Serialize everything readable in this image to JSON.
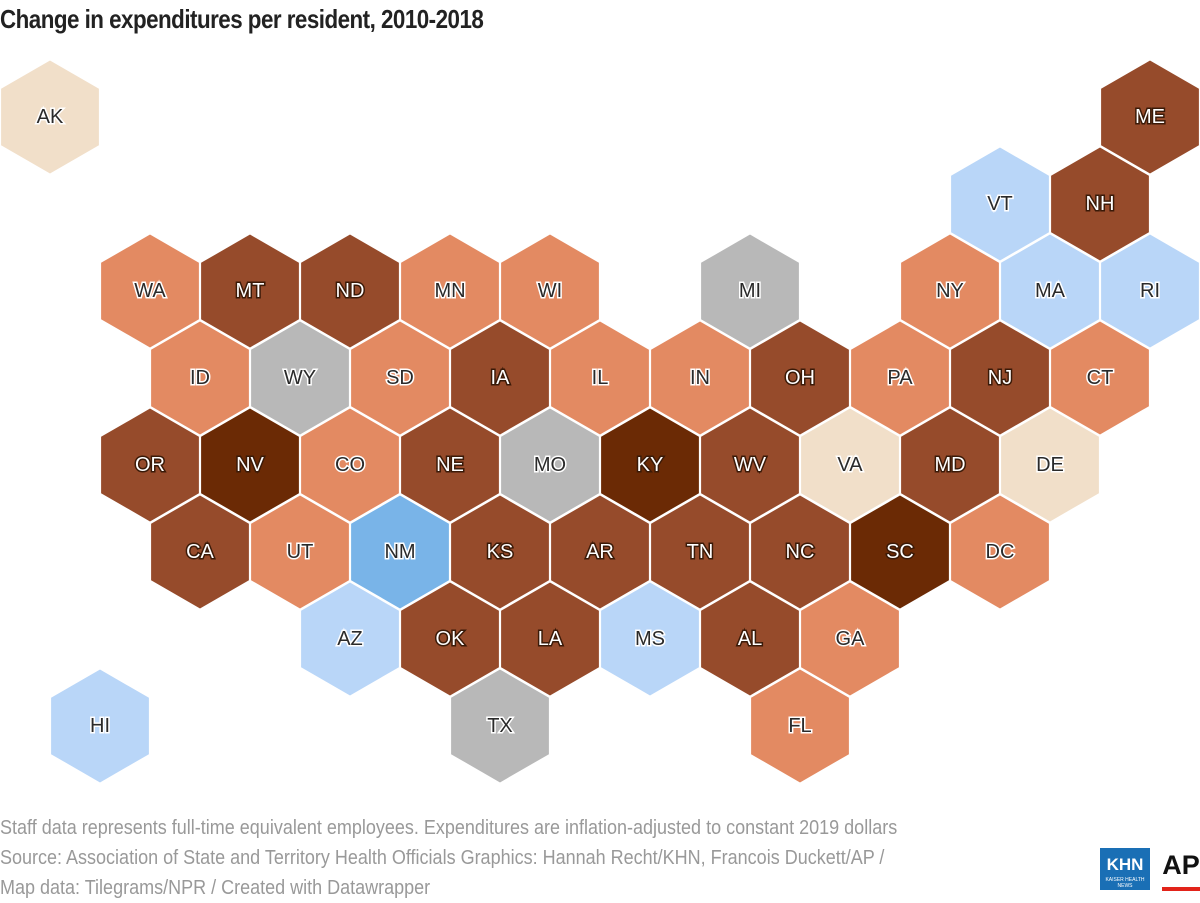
{
  "title": "Change in expenditures per resident, 2010-2018",
  "footer": {
    "note": "Staff data represents full-time equivalent employees. Expenditures are inflation-adjusted to constant 2019 dollars",
    "source": "Source: Association of State and Territory Health Officials Graphics: Hannah Recht/KHN, Francois Duckett/AP /",
    "map_data": "Map data: Tilegrams/NPR / Created with Datawrapper"
  },
  "logos": {
    "khn": "KHN",
    "khn_sub": "KAISER HEALTH NEWS",
    "ap": "AP"
  },
  "colors": {
    "c1": "#6b2a05",
    "c2": "#964b2b",
    "c3": "#e38a62",
    "c4": "#f1dfc9",
    "c5": "#b8b8b8",
    "c6": "#b9d6f8",
    "c7": "#79b4e8"
  },
  "chart_data": {
    "type": "hex-tile-map",
    "title": "Change in expenditures per resident, 2010-2018",
    "states": [
      {
        "abbr": "AK",
        "row": 0,
        "col": 0,
        "category": "c4"
      },
      {
        "abbr": "ME",
        "row": 0,
        "col": 11,
        "category": "c2"
      },
      {
        "abbr": "VT",
        "row": 1,
        "col": 9,
        "category": "c6"
      },
      {
        "abbr": "NH",
        "row": 1,
        "col": 10,
        "category": "c2"
      },
      {
        "abbr": "WA",
        "row": 2,
        "col": 1,
        "category": "c3"
      },
      {
        "abbr": "MT",
        "row": 2,
        "col": 2,
        "category": "c2"
      },
      {
        "abbr": "ND",
        "row": 2,
        "col": 3,
        "category": "c2"
      },
      {
        "abbr": "MN",
        "row": 2,
        "col": 4,
        "category": "c3"
      },
      {
        "abbr": "WI",
        "row": 2,
        "col": 5,
        "category": "c3"
      },
      {
        "abbr": "MI",
        "row": 2,
        "col": 7,
        "category": "c5"
      },
      {
        "abbr": "NY",
        "row": 2,
        "col": 9,
        "category": "c3"
      },
      {
        "abbr": "MA",
        "row": 2,
        "col": 10,
        "category": "c6"
      },
      {
        "abbr": "RI",
        "row": 2,
        "col": 11,
        "category": "c6"
      },
      {
        "abbr": "ID",
        "row": 3,
        "col": 1,
        "category": "c3"
      },
      {
        "abbr": "WY",
        "row": 3,
        "col": 2,
        "category": "c5"
      },
      {
        "abbr": "SD",
        "row": 3,
        "col": 3,
        "category": "c3"
      },
      {
        "abbr": "IA",
        "row": 3,
        "col": 4,
        "category": "c2"
      },
      {
        "abbr": "IL",
        "row": 3,
        "col": 5,
        "category": "c3"
      },
      {
        "abbr": "IN",
        "row": 3,
        "col": 6,
        "category": "c3"
      },
      {
        "abbr": "OH",
        "row": 3,
        "col": 7,
        "category": "c2"
      },
      {
        "abbr": "PA",
        "row": 3,
        "col": 8,
        "category": "c3"
      },
      {
        "abbr": "NJ",
        "row": 3,
        "col": 9,
        "category": "c2"
      },
      {
        "abbr": "CT",
        "row": 3,
        "col": 10,
        "category": "c3"
      },
      {
        "abbr": "OR",
        "row": 4,
        "col": 1,
        "category": "c2"
      },
      {
        "abbr": "NV",
        "row": 4,
        "col": 2,
        "category": "c1"
      },
      {
        "abbr": "CO",
        "row": 4,
        "col": 3,
        "category": "c3"
      },
      {
        "abbr": "NE",
        "row": 4,
        "col": 4,
        "category": "c2"
      },
      {
        "abbr": "MO",
        "row": 4,
        "col": 5,
        "category": "c5"
      },
      {
        "abbr": "KY",
        "row": 4,
        "col": 6,
        "category": "c1"
      },
      {
        "abbr": "WV",
        "row": 4,
        "col": 7,
        "category": "c2"
      },
      {
        "abbr": "VA",
        "row": 4,
        "col": 8,
        "category": "c4"
      },
      {
        "abbr": "MD",
        "row": 4,
        "col": 9,
        "category": "c2"
      },
      {
        "abbr": "DE",
        "row": 4,
        "col": 10,
        "category": "c4"
      },
      {
        "abbr": "CA",
        "row": 5,
        "col": 1,
        "category": "c2"
      },
      {
        "abbr": "UT",
        "row": 5,
        "col": 2,
        "category": "c3"
      },
      {
        "abbr": "NM",
        "row": 5,
        "col": 3,
        "category": "c7"
      },
      {
        "abbr": "KS",
        "row": 5,
        "col": 4,
        "category": "c2"
      },
      {
        "abbr": "AR",
        "row": 5,
        "col": 5,
        "category": "c2"
      },
      {
        "abbr": "TN",
        "row": 5,
        "col": 6,
        "category": "c2"
      },
      {
        "abbr": "NC",
        "row": 5,
        "col": 7,
        "category": "c2"
      },
      {
        "abbr": "SC",
        "row": 5,
        "col": 8,
        "category": "c1"
      },
      {
        "abbr": "DC",
        "row": 5,
        "col": 9,
        "category": "c3"
      },
      {
        "abbr": "AZ",
        "row": 6,
        "col": 3,
        "category": "c6"
      },
      {
        "abbr": "OK",
        "row": 6,
        "col": 4,
        "category": "c2"
      },
      {
        "abbr": "LA",
        "row": 6,
        "col": 5,
        "category": "c2"
      },
      {
        "abbr": "MS",
        "row": 6,
        "col": 6,
        "category": "c6"
      },
      {
        "abbr": "AL",
        "row": 6,
        "col": 7,
        "category": "c2"
      },
      {
        "abbr": "GA",
        "row": 6,
        "col": 8,
        "category": "c3"
      },
      {
        "abbr": "HI",
        "row": 7,
        "col": 0,
        "category": "c6"
      },
      {
        "abbr": "TX",
        "row": 7,
        "col": 4,
        "category": "c5"
      },
      {
        "abbr": "FL",
        "row": 7,
        "col": 7,
        "category": "c3"
      }
    ]
  }
}
